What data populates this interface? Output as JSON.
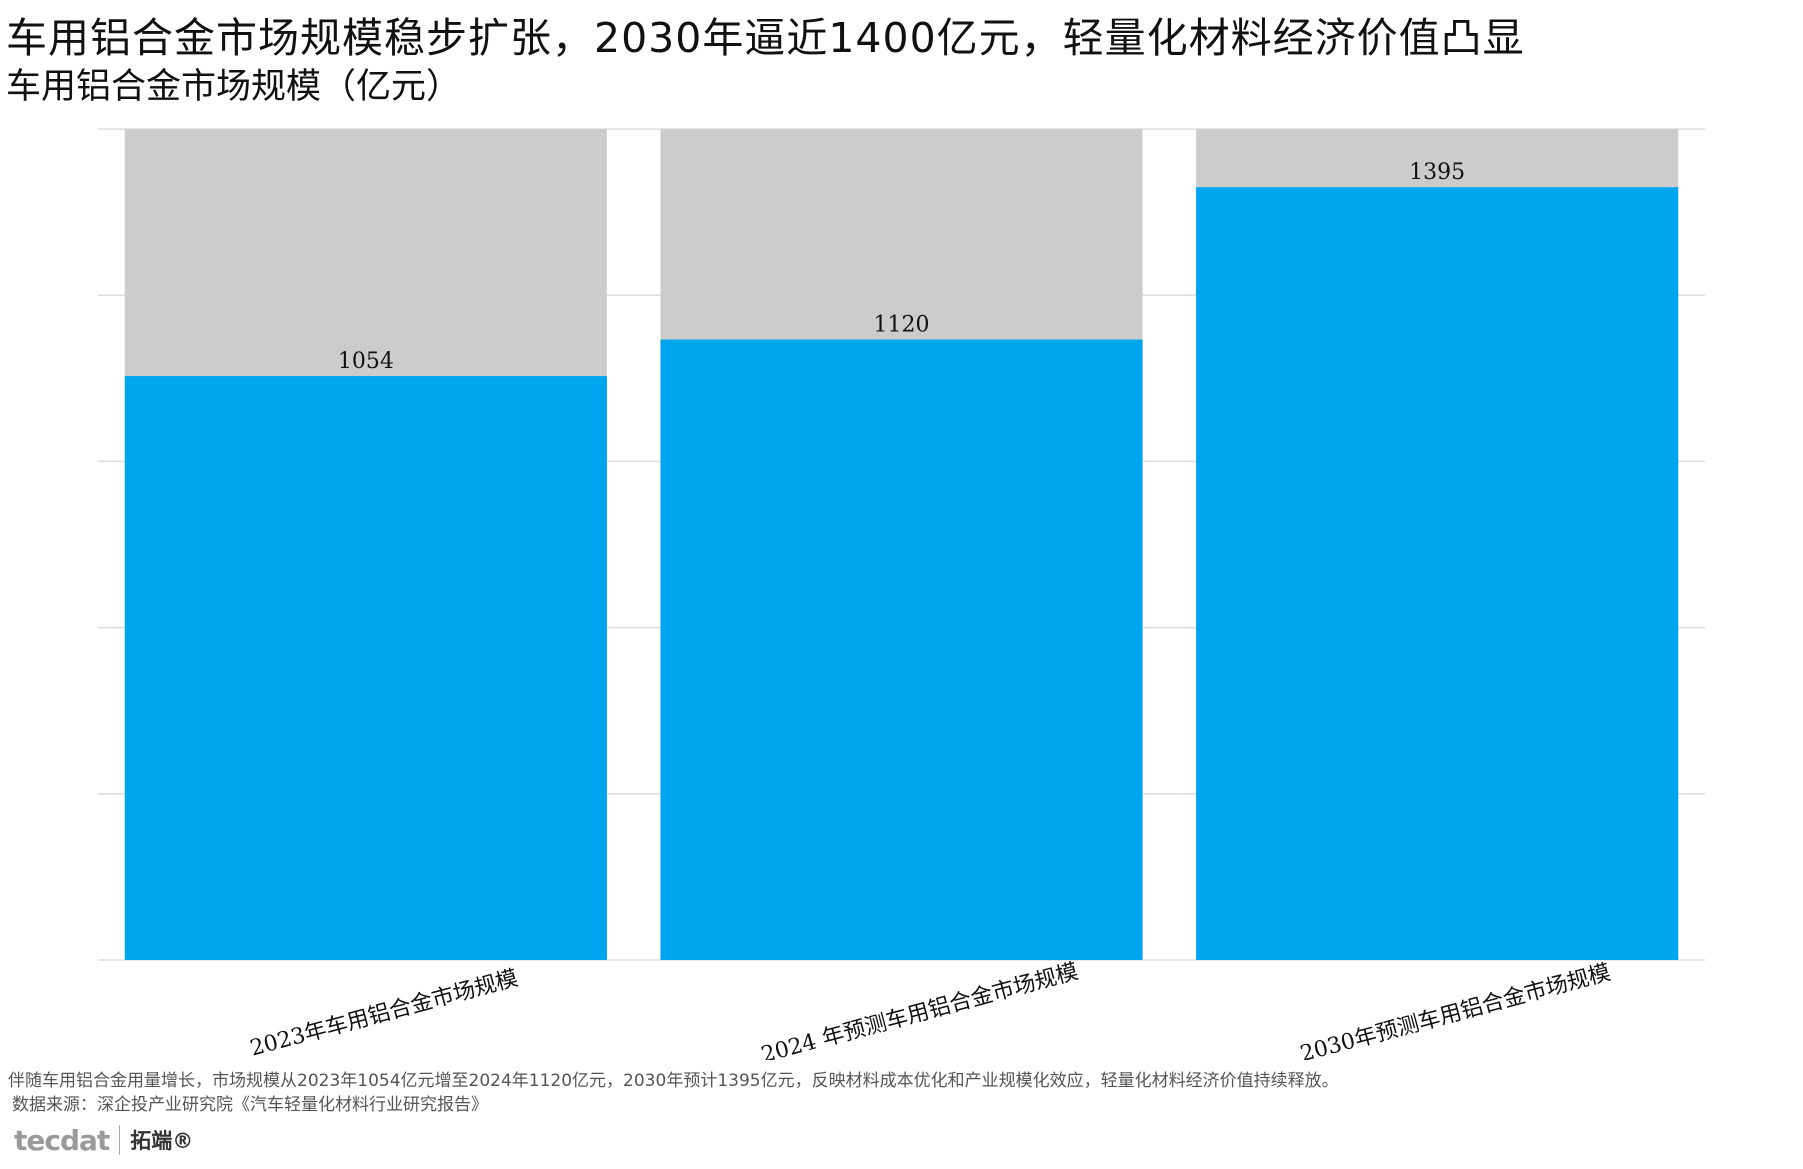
{
  "title": "车用铝合金市场规模稳步扩张，2030年逼近1400亿元，轻量化材料经济价值凸显",
  "subtitle": "车用铝合金市场规模（亿元）",
  "chart_data": {
    "type": "bar",
    "categories": [
      "2023年车用铝合金市场规模",
      "2024 年预测车用铝合金市场规模",
      "2030年预测车用铝合金市场规模"
    ],
    "values": [
      1054,
      1120,
      1395
    ],
    "data_labels": [
      "1054",
      "1120",
      "1395"
    ],
    "ylim": [
      0,
      1500
    ],
    "grid": true,
    "background_bar_value": 1500,
    "colors": {
      "bar": "#00A5F0",
      "background_bar": "#CCCCCC",
      "grid": "#DDDDDD"
    }
  },
  "note": "伴随车用铝合金用量增长，市场规模从2023年1054亿元增至2024年1120亿元，2030年预计1395亿元，反映材料成本优化和产业规模化效应，轻量化材料经济价值持续释放。",
  "source": "数据来源：深企投产业研究院《汽车轻量化材料行业研究报告》",
  "logo": {
    "en": "tecdat",
    "cn": "拓端®"
  }
}
